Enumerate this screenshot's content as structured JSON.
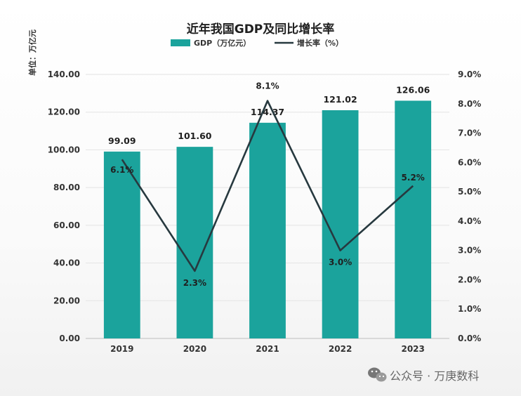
{
  "chart_data": {
    "type": "bar",
    "title": "近年我国GDP及同比增长率",
    "categories": [
      "2019",
      "2020",
      "2021",
      "2022",
      "2023"
    ],
    "series": [
      {
        "name": "GDP（万亿元）",
        "type": "bar",
        "axis": "left",
        "color": "#1ba39c",
        "values": [
          99.09,
          101.6,
          114.37,
          121.02,
          126.06
        ],
        "labels": [
          "99.09",
          "101.60",
          "114.37",
          "121.02",
          "126.06"
        ]
      },
      {
        "name": "增长率（%）",
        "type": "line",
        "axis": "right",
        "color": "#27393f",
        "values": [
          6.1,
          2.3,
          8.1,
          3.0,
          5.2
        ],
        "labels": [
          "6.1%",
          "2.3%",
          "8.1%",
          "3.0%",
          "5.2%"
        ]
      }
    ],
    "y_left": {
      "label": "单位：万亿元",
      "ylim": [
        0,
        140
      ],
      "ticks": [
        "0.00",
        "20.00",
        "40.00",
        "60.00",
        "80.00",
        "100.00",
        "120.00",
        "140.00"
      ]
    },
    "y_right": {
      "ylim": [
        0,
        9
      ],
      "ticks": [
        "0.0%",
        "1.0%",
        "2.0%",
        "3.0%",
        "4.0%",
        "5.0%",
        "6.0%",
        "7.0%",
        "8.0%",
        "9.0%"
      ]
    },
    "grid": true,
    "legend_position": "top-center"
  },
  "watermark": {
    "text": "公众号 · 万庚数科",
    "icon": "wechat-icon"
  }
}
